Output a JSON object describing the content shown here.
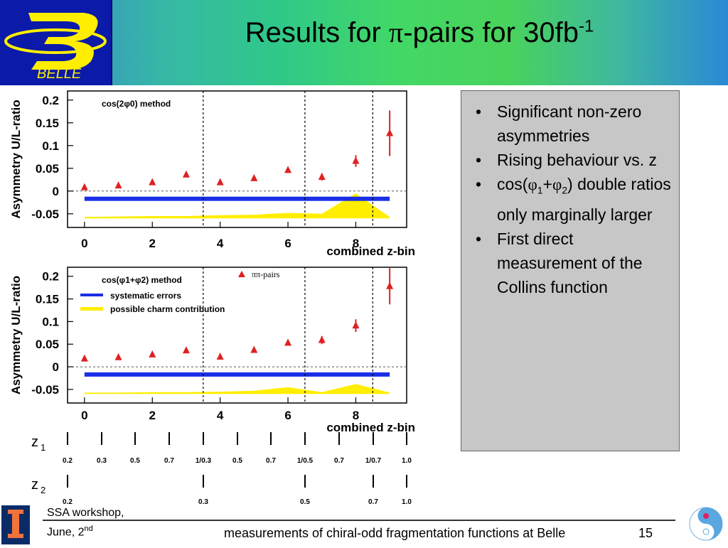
{
  "slide": {
    "title_main": "Results for ",
    "title_pi": "π",
    "title_rest": "-pairs for 30fb",
    "title_sup": "-1",
    "logo_text": "BELLE",
    "bullets": [
      "Significant non-zero asymmetries",
      "Rising behaviour vs. z",
      "cos(φ1+φ2) double ratios only marginally larger",
      "First direct measurement of the Collins function"
    ],
    "bullet3_prefix": "cos(",
    "bullet3_phi1": "φ",
    "bullet3_sub1": "1",
    "bullet3_plus": "+",
    "bullet3_phi2": "φ",
    "bullet3_sub2": "2",
    "bullet3_suffix": ") double ratios only marginally larger",
    "footer_workshop": "SSA workshop,",
    "footer_date": "June, 2",
    "footer_date_sup": "nd",
    "footer_center": "measurements of chiral-odd fragmentation functions at Belle",
    "page_number": "15",
    "z1_label": "z",
    "z1_sub": "1",
    "z2_label": "z",
    "z2_sub": "2"
  },
  "chart_data": [
    {
      "type": "scatter",
      "annotation": "cos(2φ0) method",
      "ylabel": "Asymmetry U/L-ratio",
      "xlabel": "combined z-bin",
      "xlim": [
        -0.5,
        9.5
      ],
      "ylim": [
        -0.08,
        0.22
      ],
      "yticks": [
        "0.2",
        "0.15",
        "0.1",
        "0.05",
        "0",
        "-0.05"
      ],
      "xticks": [
        "0",
        "2",
        "4",
        "6",
        "8"
      ],
      "x": [
        0,
        1,
        2,
        3,
        4,
        5,
        6,
        7,
        8,
        9
      ],
      "y": [
        0.008,
        0.012,
        0.019,
        0.036,
        0.019,
        0.028,
        0.046,
        0.031,
        0.066,
        0.127
      ],
      "yerr": [
        0.003,
        0.003,
        0.003,
        0.004,
        0.003,
        0.004,
        0.005,
        0.008,
        0.013,
        0.05
      ],
      "systematic_band": -0.017,
      "charm_band": [
        [
          0,
          -0.057
        ],
        [
          1,
          -0.056
        ],
        [
          2,
          -0.055
        ],
        [
          3,
          -0.055
        ],
        [
          4,
          -0.053
        ],
        [
          5,
          -0.052
        ],
        [
          6,
          -0.048
        ],
        [
          7,
          -0.05
        ],
        [
          8,
          -0.005
        ],
        [
          9,
          -0.057
        ]
      ],
      "dashed_lines": [
        3.5,
        6.5,
        8.5
      ]
    },
    {
      "type": "scatter",
      "annotation": "cos(φ1+φ2) method",
      "ylabel": "Asymmetry U/L-ratio",
      "xlabel": "combined z-bin",
      "xlim": [
        -0.5,
        9.5
      ],
      "ylim": [
        -0.08,
        0.22
      ],
      "yticks": [
        "0.2",
        "0.15",
        "0.1",
        "0.05",
        "0",
        "-0.05"
      ],
      "xticks": [
        "0",
        "2",
        "4",
        "6",
        "8"
      ],
      "x": [
        0,
        1,
        2,
        3,
        4,
        5,
        6,
        7,
        8,
        9
      ],
      "y": [
        0.018,
        0.021,
        0.027,
        0.036,
        0.022,
        0.037,
        0.053,
        0.059,
        0.091,
        0.178
      ],
      "yerr": [
        0.003,
        0.003,
        0.003,
        0.004,
        0.003,
        0.004,
        0.005,
        0.009,
        0.014,
        0.04
      ],
      "systematic_band": -0.017,
      "charm_band": [
        [
          0,
          -0.057
        ],
        [
          1,
          -0.057
        ],
        [
          2,
          -0.056
        ],
        [
          3,
          -0.056
        ],
        [
          4,
          -0.055
        ],
        [
          5,
          -0.053
        ],
        [
          6,
          -0.045
        ],
        [
          7,
          -0.056
        ],
        [
          8,
          -0.038
        ],
        [
          9,
          -0.057
        ]
      ],
      "dashed_lines": [
        3.5,
        6.5,
        8.5
      ],
      "legend": [
        "ππ-pairs",
        "systematic errors",
        "possible charm contribution"
      ]
    }
  ],
  "z_scales": {
    "z1_ticks": [
      "0.2",
      "0.3",
      "0.5",
      "0.7",
      "1/0.3",
      "0.5",
      "0.7",
      "1/0.5",
      "0.7",
      "1/0.7",
      "1.0"
    ],
    "z2_ticks": [
      "0.2",
      "0.3",
      "0.5",
      "0.7",
      "1.0"
    ]
  },
  "colors": {
    "marker": "#e02020",
    "systematic": "#1a2ee6",
    "charm": "#ffee00"
  }
}
